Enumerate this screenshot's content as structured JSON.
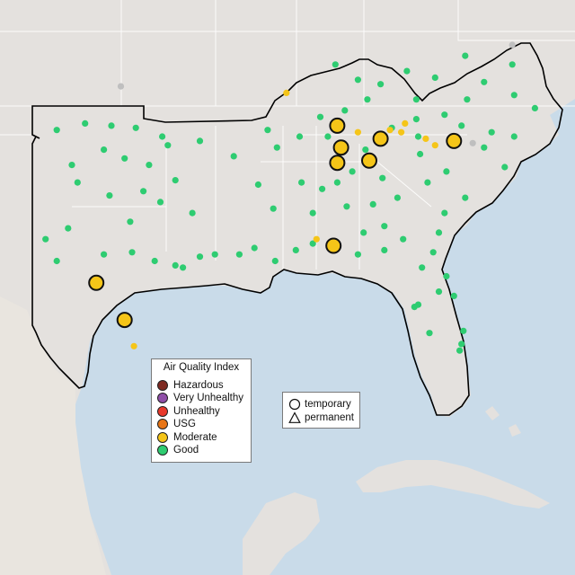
{
  "colors": {
    "ocean": "#c9dbe9",
    "land": "#e4e1de",
    "land_south": "#eae6df",
    "border_light": "#ffffff",
    "region_outline": "#000000",
    "hazardous": "#7e2a22",
    "very_unhealthy": "#8f4fa8",
    "unhealthy": "#e8392b",
    "usg": "#e87516",
    "moderate": "#f5c518",
    "good": "#2ecc71",
    "inactive": "#bfbfbf"
  },
  "aqi_legend": {
    "title": "Air Quality Index",
    "items": [
      {
        "label": "Hazardous",
        "color": "#7e2a22"
      },
      {
        "label": "Very Unhealthy",
        "color": "#8f4fa8"
      },
      {
        "label": "Unhealthy",
        "color": "#e8392b"
      },
      {
        "label": "USG",
        "color": "#e87516"
      },
      {
        "label": "Moderate",
        "color": "#f5c518"
      },
      {
        "label": "Good",
        "color": "#2ecc71"
      }
    ]
  },
  "shape_legend": {
    "temporary": "temporary",
    "permanent": "permanent"
  },
  "monitors": {
    "temporary_moderate": [
      {
        "lon": -86.8,
        "lat": 36.1
      },
      {
        "lon": -84.5,
        "lat": 35.5
      },
      {
        "lon": -86.6,
        "lat": 35.1
      },
      {
        "lon": -86.8,
        "lat": 34.4
      },
      {
        "lon": -85.1,
        "lat": 34.5
      },
      {
        "lon": -80.6,
        "lat": 35.4
      },
      {
        "lon": -87.0,
        "lat": 30.6
      },
      {
        "lon": -99.6,
        "lat": 28.9
      },
      {
        "lon": -98.1,
        "lat": 27.2
      }
    ],
    "good": [
      {
        "lon": -101.7,
        "lat": 35.9
      },
      {
        "lon": -100.2,
        "lat": 36.2
      },
      {
        "lon": -98.8,
        "lat": 36.1
      },
      {
        "lon": -97.5,
        "lat": 36.0
      },
      {
        "lon": -96.1,
        "lat": 35.6
      },
      {
        "lon": -95.8,
        "lat": 35.2
      },
      {
        "lon": -99.2,
        "lat": 35.0
      },
      {
        "lon": -100.9,
        "lat": 34.3
      },
      {
        "lon": -98.1,
        "lat": 34.6
      },
      {
        "lon": -96.8,
        "lat": 34.3
      },
      {
        "lon": -95.4,
        "lat": 33.6
      },
      {
        "lon": -97.1,
        "lat": 33.1
      },
      {
        "lon": -96.2,
        "lat": 32.6
      },
      {
        "lon": -94.5,
        "lat": 32.1
      },
      {
        "lon": -97.8,
        "lat": 31.7
      },
      {
        "lon": -98.9,
        "lat": 32.9
      },
      {
        "lon": -100.6,
        "lat": 33.5
      },
      {
        "lon": -101.1,
        "lat": 31.4
      },
      {
        "lon": -102.3,
        "lat": 30.9
      },
      {
        "lon": -101.7,
        "lat": 29.9
      },
      {
        "lon": -99.2,
        "lat": 30.2
      },
      {
        "lon": -97.7,
        "lat": 30.3
      },
      {
        "lon": -96.5,
        "lat": 29.9
      },
      {
        "lon": -95.4,
        "lat": 29.7
      },
      {
        "lon": -95.0,
        "lat": 29.6
      },
      {
        "lon": -94.1,
        "lat": 30.1
      },
      {
        "lon": -93.3,
        "lat": 30.2
      },
      {
        "lon": -92.0,
        "lat": 30.2
      },
      {
        "lon": -91.2,
        "lat": 30.5
      },
      {
        "lon": -90.1,
        "lat": 29.9
      },
      {
        "lon": -89.0,
        "lat": 30.4
      },
      {
        "lon": -88.1,
        "lat": 30.7
      },
      {
        "lon": -90.2,
        "lat": 32.3
      },
      {
        "lon": -88.7,
        "lat": 33.5
      },
      {
        "lon": -91.0,
        "lat": 33.4
      },
      {
        "lon": -92.3,
        "lat": 34.7
      },
      {
        "lon": -94.1,
        "lat": 35.4
      },
      {
        "lon": -90.5,
        "lat": 35.9
      },
      {
        "lon": -90.0,
        "lat": 35.1
      },
      {
        "lon": -88.8,
        "lat": 35.6
      },
      {
        "lon": -87.7,
        "lat": 36.5
      },
      {
        "lon": -86.4,
        "lat": 36.8
      },
      {
        "lon": -85.2,
        "lat": 37.3
      },
      {
        "lon": -84.5,
        "lat": 38.0
      },
      {
        "lon": -85.7,
        "lat": 38.2
      },
      {
        "lon": -86.9,
        "lat": 38.9
      },
      {
        "lon": -83.1,
        "lat": 38.6
      },
      {
        "lon": -82.6,
        "lat": 37.3
      },
      {
        "lon": -81.6,
        "lat": 38.3
      },
      {
        "lon": -80.0,
        "lat": 39.3
      },
      {
        "lon": -79.0,
        "lat": 38.1
      },
      {
        "lon": -77.5,
        "lat": 38.9
      },
      {
        "lon": -77.4,
        "lat": 37.5
      },
      {
        "lon": -76.3,
        "lat": 36.9
      },
      {
        "lon": -79.9,
        "lat": 37.3
      },
      {
        "lon": -81.1,
        "lat": 36.6
      },
      {
        "lon": -82.6,
        "lat": 36.4
      },
      {
        "lon": -83.9,
        "lat": 36.0
      },
      {
        "lon": -82.5,
        "lat": 35.6
      },
      {
        "lon": -80.2,
        "lat": 36.1
      },
      {
        "lon": -78.6,
        "lat": 35.8
      },
      {
        "lon": -77.4,
        "lat": 35.6
      },
      {
        "lon": -77.9,
        "lat": 34.2
      },
      {
        "lon": -79.0,
        "lat": 35.1
      },
      {
        "lon": -81.0,
        "lat": 34.0
      },
      {
        "lon": -82.4,
        "lat": 34.8
      },
      {
        "lon": -80.0,
        "lat": 32.8
      },
      {
        "lon": -81.1,
        "lat": 32.1
      },
      {
        "lon": -82.0,
        "lat": 33.5
      },
      {
        "lon": -84.4,
        "lat": 33.7
      },
      {
        "lon": -83.6,
        "lat": 32.8
      },
      {
        "lon": -84.9,
        "lat": 32.5
      },
      {
        "lon": -84.3,
        "lat": 31.5
      },
      {
        "lon": -83.3,
        "lat": 30.9
      },
      {
        "lon": -81.4,
        "lat": 31.2
      },
      {
        "lon": -81.7,
        "lat": 30.3
      },
      {
        "lon": -84.3,
        "lat": 30.4
      },
      {
        "lon": -85.7,
        "lat": 30.2
      },
      {
        "lon": -82.3,
        "lat": 29.6
      },
      {
        "lon": -81.0,
        "lat": 29.2
      },
      {
        "lon": -81.4,
        "lat": 28.5
      },
      {
        "lon": -82.5,
        "lat": 27.9
      },
      {
        "lon": -82.7,
        "lat": 27.8
      },
      {
        "lon": -81.9,
        "lat": 26.6
      },
      {
        "lon": -80.1,
        "lat": 26.7
      },
      {
        "lon": -80.2,
        "lat": 26.1
      },
      {
        "lon": -80.3,
        "lat": 25.8
      },
      {
        "lon": -80.6,
        "lat": 28.3
      },
      {
        "lon": -86.8,
        "lat": 33.5
      },
      {
        "lon": -86.3,
        "lat": 32.4
      },
      {
        "lon": -85.4,
        "lat": 31.2
      },
      {
        "lon": -88.1,
        "lat": 32.1
      },
      {
        "lon": -87.6,
        "lat": 33.2
      },
      {
        "lon": -86.0,
        "lat": 34.0
      },
      {
        "lon": -85.3,
        "lat": 35.0
      },
      {
        "lon": -87.3,
        "lat": 35.6
      }
    ],
    "moderate_small": [
      {
        "lon": -89.5,
        "lat": 37.6
      },
      {
        "lon": -83.2,
        "lat": 36.2
      },
      {
        "lon": -83.4,
        "lat": 35.8
      },
      {
        "lon": -84.0,
        "lat": 35.9
      },
      {
        "lon": -82.1,
        "lat": 35.5
      },
      {
        "lon": -85.7,
        "lat": 35.8
      },
      {
        "lon": -81.6,
        "lat": 35.2
      },
      {
        "lon": -87.9,
        "lat": 30.9
      },
      {
        "lon": -97.6,
        "lat": 26.0
      }
    ],
    "inactive": [
      {
        "lon": -98.3,
        "lat": 37.9
      },
      {
        "lon": -77.5,
        "lat": 39.8
      },
      {
        "lon": -79.6,
        "lat": 35.3
      }
    ]
  }
}
